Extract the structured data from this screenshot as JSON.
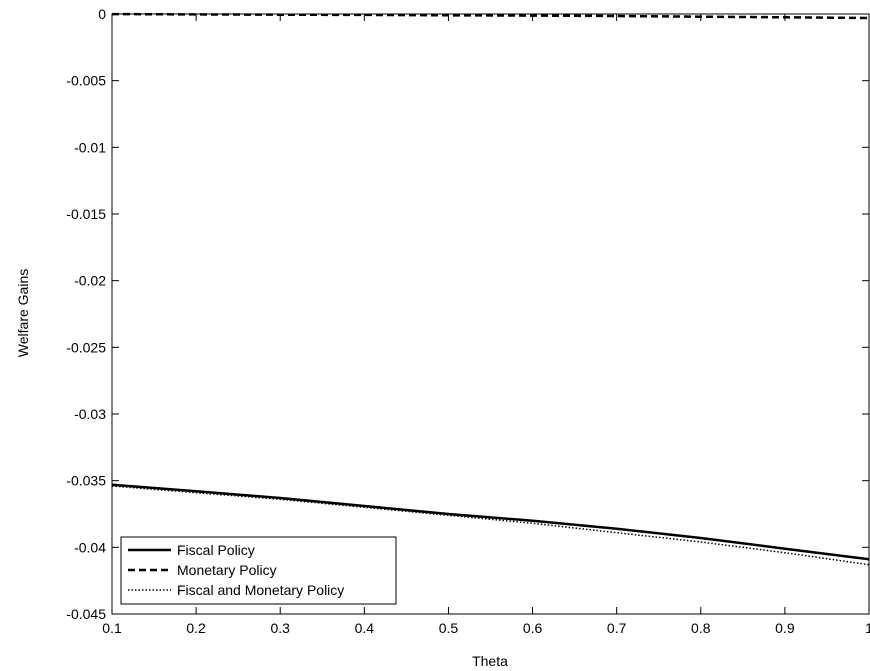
{
  "chart_data": {
    "type": "line",
    "title": "",
    "xlabel": "Theta",
    "ylabel": "Welfare Gains",
    "xlim": [
      0.1,
      1
    ],
    "ylim": [
      -0.045,
      0
    ],
    "xticks": [
      0.1,
      0.2,
      0.3,
      0.4,
      0.5,
      0.6,
      0.7,
      0.8,
      0.9,
      1
    ],
    "xtick_labels": [
      "0.1",
      "0.2",
      "0.3",
      "0.4",
      "0.5",
      "0.6",
      "0.7",
      "0.8",
      "0.9",
      "1"
    ],
    "yticks": [
      0,
      -0.005,
      -0.01,
      -0.015,
      -0.02,
      -0.025,
      -0.03,
      -0.035,
      -0.04,
      -0.045
    ],
    "ytick_labels": [
      "0",
      "-0.005",
      "-0.01",
      "-0.015",
      "-0.02",
      "-0.025",
      "-0.03",
      "-0.035",
      "-0.04",
      "-0.045"
    ],
    "grid": false,
    "legend_position": "bottom-left",
    "x": [
      0.1,
      0.2,
      0.3,
      0.4,
      0.5,
      0.6,
      0.7,
      0.8,
      0.9,
      1.0
    ],
    "series": [
      {
        "name": "Fiscal Policy",
        "style": "solid",
        "color": "#000000",
        "values": [
          -0.0353,
          -0.0358,
          -0.0363,
          -0.0369,
          -0.0375,
          -0.038,
          -0.0386,
          -0.0393,
          -0.0401,
          -0.0409
        ]
      },
      {
        "name": "Monetary Policy",
        "style": "dashed",
        "color": "#000000",
        "values": [
          -1e-05,
          -3e-05,
          -5e-05,
          -7e-05,
          -0.0001,
          -0.00012,
          -0.00015,
          -0.0002,
          -0.00025,
          -0.0003
        ]
      },
      {
        "name": "Fiscal and Monetary Policy",
        "style": "dotted",
        "color": "#000000",
        "values": [
          -0.0354,
          -0.0359,
          -0.0364,
          -0.037,
          -0.0376,
          -0.0382,
          -0.0389,
          -0.0396,
          -0.0404,
          -0.0413
        ]
      }
    ]
  }
}
